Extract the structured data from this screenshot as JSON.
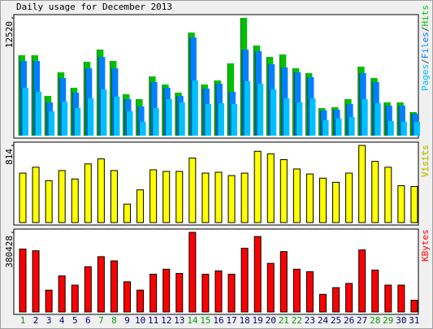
{
  "chart_data": {
    "type": "bar",
    "title": "Daily usage for December 2013",
    "categories": [
      "1",
      "2",
      "3",
      "4",
      "5",
      "6",
      "7",
      "8",
      "9",
      "10",
      "11",
      "12",
      "13",
      "14",
      "15",
      "16",
      "17",
      "18",
      "19",
      "20",
      "21",
      "22",
      "23",
      "24",
      "25",
      "26",
      "27",
      "28",
      "29",
      "30",
      "31"
    ],
    "category_colors": [
      "#00a000",
      "#000080",
      "#000080",
      "#000080",
      "#000080",
      "#000080",
      "#00a000",
      "#00a000",
      "#000080",
      "#000080",
      "#000080",
      "#000080",
      "#000080",
      "#00a000",
      "#00a000",
      "#000080",
      "#000080",
      "#000080",
      "#000080",
      "#000080",
      "#00a000",
      "#00a000",
      "#000080",
      "#000080",
      "#000080",
      "#000080",
      "#000080",
      "#00a000",
      "#00a000",
      "#000080",
      "#000080"
    ],
    "panels": [
      {
        "type": "bar",
        "ylim": [
          0,
          12520
        ],
        "yticks": [
          12520
        ],
        "legend_separator": "/",
        "series": [
          {
            "name": "Pages",
            "color": "#00c0ff",
            "values": [
              5092,
              4660,
              2589,
              3625,
              2934,
              3970,
              4919,
              4142,
              2589,
              1467,
              2934,
              3884,
              3538,
              5868,
              3366,
              3452,
              3366,
              5782,
              5523,
              4919,
              3970,
              3538,
              3970,
              1640,
              1812,
              1985,
              3884,
              3452,
              1553,
              1467,
              1467
            ]
          },
          {
            "name": "Files",
            "color": "#0080ff",
            "values": [
              7940,
              7940,
              3538,
              6127,
              4574,
              7163,
              8371,
              7163,
              3884,
              3107,
              5696,
              5092,
              4229,
              10442,
              5005,
              5523,
              4660,
              9148,
              8975,
              7594,
              7249,
              6731,
              6214,
              2675,
              2762,
              3366,
              6645,
              5696,
              3193,
              3193,
              2330
            ]
          },
          {
            "name": "Hits",
            "color": "#00c000",
            "values": [
              8544,
              8544,
              4229,
              6731,
              5092,
              7853,
              9148,
              7940,
              4401,
              3884,
              6300,
              5437,
              4574,
              10960,
              5437,
              5868,
              7681,
              12520,
              9580,
              8371,
              8630,
              7163,
              6645,
              2934,
              3021,
              3884,
              7336,
              6127,
              3538,
              3538,
              2503
            ]
          }
        ]
      },
      {
        "type": "bar",
        "ylim": [
          0,
          814
        ],
        "yticks": [
          814
        ],
        "series": [
          {
            "name": "Visits",
            "color": "#ffff00",
            "values": [
              522,
              584,
              442,
              549,
              460,
              619,
              672,
              549,
              195,
              345,
              557,
              540,
              540,
              681,
              522,
              531,
              496,
              522,
              752,
              726,
              664,
              566,
              513,
              469,
              425,
              522,
              814,
              646,
              584,
              389,
              381
            ]
          }
        ]
      },
      {
        "type": "bar",
        "ylim": [
          0,
          380428
        ],
        "yticks": [
          380428
        ],
        "series": [
          {
            "name": "KBytes",
            "color": "#ff0000",
            "values": [
              300336,
              292329,
              104117,
              172194,
              128144,
              216243,
              264297,
              244274,
              144162,
              104117,
              180203,
              204230,
              184207,
              380428,
              180203,
              196221,
              180203,
              304342,
              360405,
              232261,
              288324,
              204230,
              192216,
              84095,
              116131,
              136153,
              296333,
              200225,
              128144,
              128144,
              56063
            ]
          }
        ]
      }
    ]
  }
}
